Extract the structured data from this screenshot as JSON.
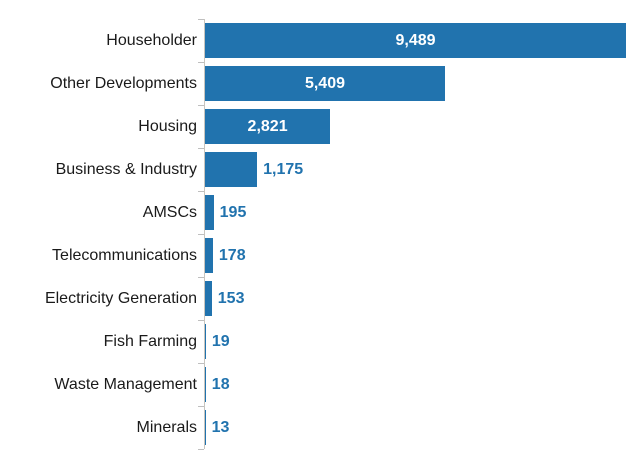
{
  "chart_data": {
    "type": "bar",
    "orientation": "horizontal",
    "title": "",
    "xlabel": "",
    "ylabel": "",
    "categories": [
      "Householder",
      "Other Developments",
      "Housing",
      "Business & Industry",
      "AMSCs",
      "Telecommunications",
      "Electricity Generation",
      "Fish Farming",
      "Waste Management",
      "Minerals"
    ],
    "values": [
      9489,
      5409,
      2821,
      1175,
      195,
      178,
      153,
      19,
      18,
      13
    ],
    "value_labels": [
      "9,489",
      "5,409",
      "2,821",
      "1,175",
      "195",
      "178",
      "153",
      "19",
      "18",
      "13"
    ],
    "xlim": [
      0,
      10000
    ],
    "grid": false,
    "legend": false,
    "colors": {
      "bar": "#2173AE",
      "value_label_inside": "#FFFFFF",
      "value_label_outside": "#2173AE",
      "category_label": "#1A1A1A",
      "axis_line": "#C8C5BF",
      "tick": "#BFBFBF",
      "background": "#FFFFFF"
    }
  }
}
